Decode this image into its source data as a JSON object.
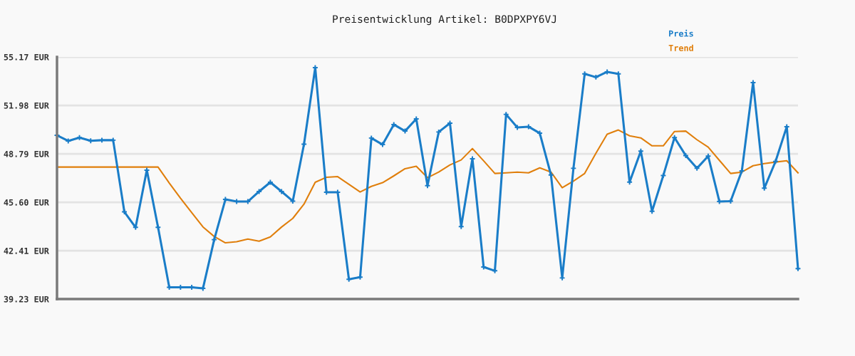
{
  "chart_data": {
    "type": "line",
    "title": "Preisentwicklung Artikel: B0DPXPY6VJ",
    "categories": [
      null,
      null,
      null,
      null,
      null,
      null,
      null,
      null,
      null,
      null,
      null,
      null,
      null,
      null,
      null,
      null,
      null,
      null,
      null,
      null,
      null,
      null,
      null,
      null,
      null,
      null,
      null,
      null,
      null,
      null,
      null,
      null,
      null,
      null,
      null,
      null,
      null,
      null,
      null,
      null,
      null,
      null,
      null,
      null,
      null,
      null,
      null,
      null,
      null,
      null,
      null,
      null,
      null,
      null,
      null,
      null,
      null,
      null,
      null,
      null,
      null,
      null,
      null,
      null,
      null,
      null,
      null
    ],
    "series": [
      {
        "name": "Preis",
        "color": "#1a7dc8",
        "marker": "cross",
        "values": [
          50.01,
          49.64,
          49.86,
          49.65,
          49.69,
          49.69,
          44.97,
          43.95,
          47.72,
          43.95,
          40.0,
          40.0,
          40.0,
          39.93,
          43.14,
          45.79,
          45.65,
          45.65,
          46.31,
          46.92,
          46.31,
          45.68,
          49.43,
          54.47,
          46.26,
          46.26,
          40.53,
          40.67,
          49.83,
          49.4,
          50.72,
          50.29,
          51.09,
          46.7,
          50.23,
          50.81,
          44.0,
          48.47,
          41.34,
          41.09,
          51.39,
          50.53,
          50.58,
          50.15,
          47.4,
          40.62,
          47.84,
          54.06,
          53.84,
          54.19,
          54.06,
          46.93,
          48.97,
          45.01,
          47.36,
          49.86,
          48.68,
          47.84,
          48.64,
          45.65,
          45.68,
          47.67,
          53.48,
          46.53,
          48.29,
          50.58,
          41.23
        ]
      },
      {
        "name": "Trend",
        "color": "#e07f0c",
        "values": [
          47.92,
          47.92,
          47.92,
          47.92,
          47.92,
          47.92,
          47.92,
          47.92,
          47.92,
          47.92,
          46.87,
          45.87,
          44.92,
          43.98,
          43.35,
          42.93,
          43.0,
          43.18,
          43.04,
          43.32,
          43.97,
          44.54,
          45.48,
          46.92,
          47.25,
          47.29,
          46.78,
          46.28,
          46.65,
          46.89,
          47.34,
          47.81,
          47.97,
          47.22,
          47.59,
          48.06,
          48.39,
          49.14,
          48.33,
          47.5,
          47.54,
          47.59,
          47.54,
          47.87,
          47.59,
          46.56,
          47.0,
          47.5,
          48.83,
          50.08,
          50.36,
          49.98,
          49.84,
          49.32,
          49.32,
          50.26,
          50.29,
          49.72,
          49.23,
          48.36,
          47.5,
          47.59,
          48.01,
          48.15,
          48.25,
          48.34,
          47.54
        ]
      }
    ],
    "ylim": [
      39.23,
      55.17
    ],
    "yticks": [
      {
        "value": 39.23,
        "label": "39.23 EUR"
      },
      {
        "value": 42.41,
        "label": "42.41 EUR"
      },
      {
        "value": 45.6,
        "label": "45.60 EUR"
      },
      {
        "value": 48.79,
        "label": "48.79 EUR"
      },
      {
        "value": 51.98,
        "label": "51.98 EUR"
      },
      {
        "value": 55.17,
        "label": "55.17 EUR"
      }
    ],
    "grid": "y",
    "legend": "top right",
    "tick_labels": "y",
    "line_style": "solid"
  }
}
